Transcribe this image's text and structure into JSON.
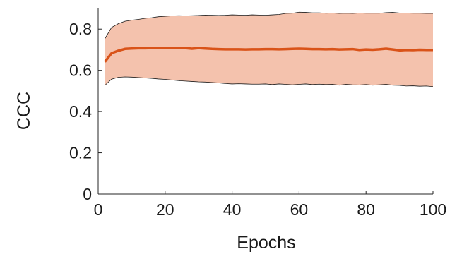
{
  "chart_data": {
    "type": "line",
    "xlabel": "Epochs",
    "ylabel": "CCC",
    "xlim": [
      0,
      100
    ],
    "ylim": [
      0,
      0.9
    ],
    "x_ticks": [
      0,
      20,
      40,
      60,
      80,
      100
    ],
    "y_ticks": [
      0,
      0.2,
      0.4,
      0.6,
      0.8
    ],
    "x_tick_labels": [
      "0",
      "20",
      "40",
      "60",
      "80",
      "100"
    ],
    "y_tick_labels": [
      "0",
      "0.2",
      "0.4",
      "0.6",
      "0.8"
    ],
    "grid": false,
    "colors": {
      "mean_line": "#d95319",
      "band_fill": "#f4c2ad",
      "band_edge": "#1a1a1a",
      "axis": "#262626"
    },
    "series": [
      {
        "role": "mean",
        "x": [
          2,
          4,
          6,
          8,
          10,
          12,
          14,
          16,
          18,
          20,
          22,
          24,
          26,
          28,
          30,
          32,
          34,
          36,
          38,
          40,
          42,
          44,
          46,
          48,
          50,
          52,
          54,
          56,
          58,
          60,
          62,
          64,
          66,
          68,
          70,
          72,
          74,
          76,
          78,
          80,
          82,
          84,
          86,
          88,
          90,
          92,
          94,
          96,
          98,
          100
        ],
        "y": [
          0.641,
          0.683,
          0.695,
          0.704,
          0.706,
          0.707,
          0.707,
          0.708,
          0.708,
          0.709,
          0.709,
          0.709,
          0.708,
          0.705,
          0.708,
          0.706,
          0.704,
          0.703,
          0.702,
          0.702,
          0.702,
          0.701,
          0.702,
          0.702,
          0.703,
          0.703,
          0.702,
          0.703,
          0.704,
          0.705,
          0.704,
          0.703,
          0.703,
          0.702,
          0.703,
          0.701,
          0.702,
          0.703,
          0.699,
          0.701,
          0.7,
          0.702,
          0.705,
          0.701,
          0.697,
          0.699,
          0.698,
          0.7,
          0.699,
          0.699
        ]
      },
      {
        "role": "upper",
        "x": [
          2,
          4,
          6,
          8,
          10,
          12,
          14,
          16,
          18,
          20,
          22,
          24,
          26,
          28,
          30,
          32,
          34,
          36,
          38,
          40,
          42,
          44,
          46,
          48,
          50,
          52,
          54,
          56,
          58,
          60,
          62,
          64,
          66,
          68,
          70,
          72,
          74,
          76,
          78,
          80,
          82,
          84,
          86,
          88,
          90,
          92,
          94,
          96,
          98,
          100
        ],
        "y": [
          0.753,
          0.808,
          0.826,
          0.838,
          0.843,
          0.847,
          0.852,
          0.855,
          0.86,
          0.862,
          0.864,
          0.865,
          0.864,
          0.865,
          0.866,
          0.868,
          0.867,
          0.866,
          0.867,
          0.869,
          0.868,
          0.867,
          0.869,
          0.868,
          0.867,
          0.869,
          0.871,
          0.876,
          0.877,
          0.882,
          0.881,
          0.879,
          0.879,
          0.877,
          0.878,
          0.876,
          0.877,
          0.876,
          0.878,
          0.877,
          0.877,
          0.877,
          0.88,
          0.881,
          0.878,
          0.878,
          0.877,
          0.877,
          0.876,
          0.876
        ]
      },
      {
        "role": "lower",
        "x": [
          2,
          4,
          6,
          8,
          10,
          12,
          14,
          16,
          18,
          20,
          22,
          24,
          26,
          28,
          30,
          32,
          34,
          36,
          38,
          40,
          42,
          44,
          46,
          48,
          50,
          52,
          54,
          56,
          58,
          60,
          62,
          64,
          66,
          68,
          70,
          72,
          74,
          76,
          78,
          80,
          82,
          84,
          86,
          88,
          90,
          92,
          94,
          96,
          98,
          100
        ],
        "y": [
          0.527,
          0.557,
          0.566,
          0.568,
          0.567,
          0.565,
          0.563,
          0.561,
          0.558,
          0.556,
          0.553,
          0.55,
          0.548,
          0.546,
          0.544,
          0.543,
          0.541,
          0.539,
          0.536,
          0.534,
          0.535,
          0.534,
          0.533,
          0.533,
          0.534,
          0.531,
          0.534,
          0.532,
          0.53,
          0.532,
          0.534,
          0.531,
          0.533,
          0.531,
          0.532,
          0.528,
          0.532,
          0.53,
          0.529,
          0.531,
          0.528,
          0.53,
          0.532,
          0.528,
          0.527,
          0.524,
          0.525,
          0.523,
          0.524,
          0.521
        ]
      }
    ]
  }
}
